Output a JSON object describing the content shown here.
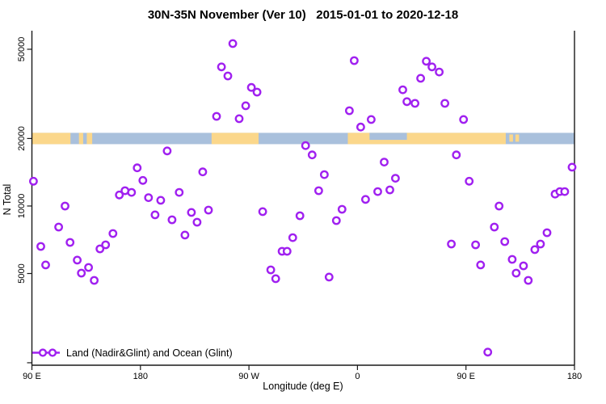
{
  "chart_data": {
    "type": "scatter",
    "title": "30N-35N November (Ver 10)   2015-01-01 to 2020-12-18",
    "xlabel": "Longitude (deg E)",
    "ylabel": "N Total",
    "legend_label": "Land (Nadir&Glint) and Ocean (Glint)",
    "x_axis": {
      "note": "longitude axis wraps eastward starting at 90E; pos is degrees east of 90E",
      "range_deg": [
        0,
        450
      ],
      "ticks": [
        {
          "pos": 0,
          "label": "90 E"
        },
        {
          "pos": 90,
          "label": "180"
        },
        {
          "pos": 180,
          "label": "90 W"
        },
        {
          "pos": 270,
          "label": "0"
        },
        {
          "pos": 360,
          "label": "90 E"
        },
        {
          "pos": 450,
          "label": "180"
        }
      ]
    },
    "y_axis": {
      "scale": "log10",
      "range": [
        1950,
        59500
      ],
      "ticks_labeled": [
        50000,
        20000,
        10000,
        5000
      ],
      "ticks_unlabeled": [
        2000
      ]
    },
    "grid": false,
    "legend_position": "bottom-left",
    "points": [
      [
        1.3,
        12900
      ],
      [
        27.5,
        10000
      ],
      [
        22.2,
        8060
      ],
      [
        7.4,
        6600
      ],
      [
        11.4,
        5460
      ],
      [
        31.6,
        6880
      ],
      [
        37.6,
        5740
      ],
      [
        41.0,
        5020
      ],
      [
        47.0,
        5320
      ],
      [
        51.7,
        4660
      ],
      [
        72.5,
        11200
      ],
      [
        77.2,
        11700
      ],
      [
        82.6,
        11500
      ],
      [
        87.3,
        14800
      ],
      [
        92.0,
        13000
      ],
      [
        96.7,
        10900
      ],
      [
        106.8,
        10600
      ],
      [
        112.2,
        17600
      ],
      [
        122.2,
        11500
      ],
      [
        141.7,
        14200
      ],
      [
        102.1,
        9130
      ],
      [
        116.2,
        8680
      ],
      [
        132.3,
        9360
      ],
      [
        137.0,
        8470
      ],
      [
        146.4,
        9590
      ],
      [
        126.9,
        7420
      ],
      [
        67.2,
        7540
      ],
      [
        61.1,
        6710
      ],
      [
        56.4,
        6440
      ],
      [
        166.6,
        53000
      ],
      [
        157.2,
        41700
      ],
      [
        162.5,
        38000
      ],
      [
        182.0,
        33800
      ],
      [
        186.7,
        32200
      ],
      [
        177.3,
        28000
      ],
      [
        153.1,
        25100
      ],
      [
        171.9,
        24500
      ],
      [
        267.3,
        44500
      ],
      [
        263.3,
        26600
      ],
      [
        281.4,
        24300
      ],
      [
        272.7,
        22500
      ],
      [
        307.6,
        33000
      ],
      [
        311.0,
        29200
      ],
      [
        327.1,
        44200
      ],
      [
        331.8,
        41700
      ],
      [
        337.8,
        39600
      ],
      [
        322.4,
        37100
      ],
      [
        317.7,
        28700
      ],
      [
        342.5,
        28700
      ],
      [
        358.0,
        24300
      ],
      [
        227.0,
        18600
      ],
      [
        232.4,
        16900
      ],
      [
        242.5,
        13800
      ],
      [
        237.8,
        11700
      ],
      [
        191.4,
        9440
      ],
      [
        222.3,
        9050
      ],
      [
        257.2,
        9670
      ],
      [
        252.5,
        8610
      ],
      [
        276.7,
        10700
      ],
      [
        286.8,
        11600
      ],
      [
        296.9,
        11800
      ],
      [
        292.2,
        15700
      ],
      [
        301.5,
        13300
      ],
      [
        216.3,
        7230
      ],
      [
        207.5,
        6280
      ],
      [
        211.6,
        6280
      ],
      [
        198.1,
        5190
      ],
      [
        202.2,
        4740
      ],
      [
        246.5,
        4820
      ],
      [
        352.0,
        16900
      ],
      [
        362.7,
        12900
      ],
      [
        387.5,
        10000
      ],
      [
        383.5,
        8060
      ],
      [
        433.9,
        11300
      ],
      [
        437.9,
        11600
      ],
      [
        441.9,
        11600
      ],
      [
        448.0,
        14900
      ],
      [
        427.2,
        7600
      ],
      [
        421.8,
        6770
      ],
      [
        417.1,
        6390
      ],
      [
        347.9,
        6770
      ],
      [
        368.0,
        6710
      ],
      [
        392.2,
        6940
      ],
      [
        398.3,
        5780
      ],
      [
        407.7,
        5410
      ],
      [
        401.6,
        5020
      ],
      [
        411.7,
        4660
      ],
      [
        372.1,
        5460
      ],
      [
        378.1,
        2230
      ]
    ],
    "map_strip": {
      "description": "thin world-map band of the 30N-35N latitude zone drawn across the 20000 level",
      "value_center": 20000,
      "land_segments_deg": [
        [
          0,
          32
        ],
        [
          39,
          42.5
        ],
        [
          45.5,
          50
        ],
        [
          149,
          188
        ],
        [
          262,
          393
        ]
      ],
      "ocean_gaps_deg": [
        [
          280,
          311
        ]
      ],
      "island_specks_deg": [
        [
          396,
          399
        ],
        [
          401,
          404
        ]
      ]
    },
    "colors": {
      "point": "#A020F0",
      "land": "#fbd78b",
      "ocean": "#a9c0dc",
      "axis": "#1a1a1a"
    }
  }
}
